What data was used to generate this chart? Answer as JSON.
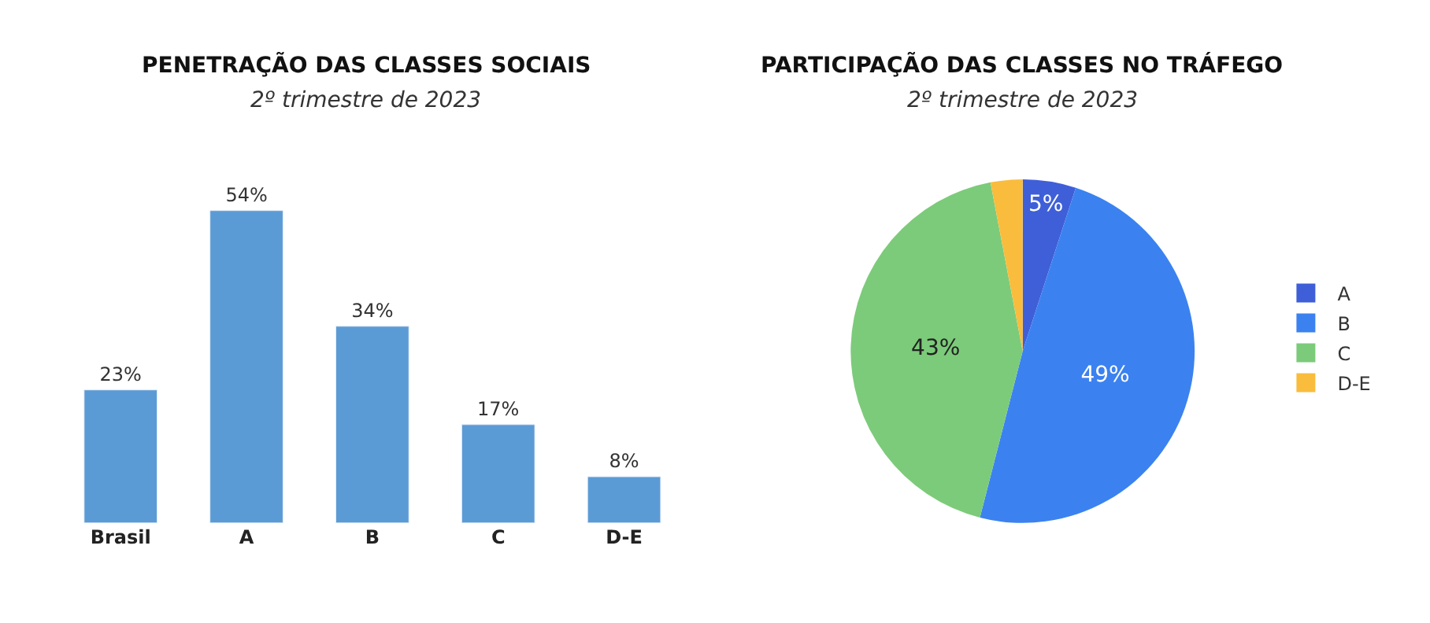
{
  "chart_data": [
    {
      "type": "bar",
      "title": "PENETRAÇÃO DAS CLASSES SOCIAIS",
      "subtitle": "2º trimestre de 2023",
      "categories": [
        "Brasil",
        "A",
        "B",
        "C",
        "D-E"
      ],
      "values": [
        23,
        54,
        34,
        17,
        8
      ],
      "color": "#5b9bd5",
      "data_labels": true,
      "value_labels": [
        "23%",
        "54%",
        "34%",
        "17%",
        "8%"
      ]
    },
    {
      "type": "pie",
      "title": "PARTICIPAÇÃO DAS CLASSES NO TRÁFEGO",
      "subtitle": "2º trimestre de 2023",
      "categories": [
        "A",
        "B",
        "C",
        "D-E"
      ],
      "values": [
        5,
        49,
        43,
        3
      ],
      "colors": [
        "#3f5fd8",
        "#3b82f0",
        "#7ccb7a",
        "#f9bc3d"
      ],
      "value_labels": [
        "5%",
        "49%",
        "43%",
        null
      ],
      "legend": "right"
    }
  ]
}
